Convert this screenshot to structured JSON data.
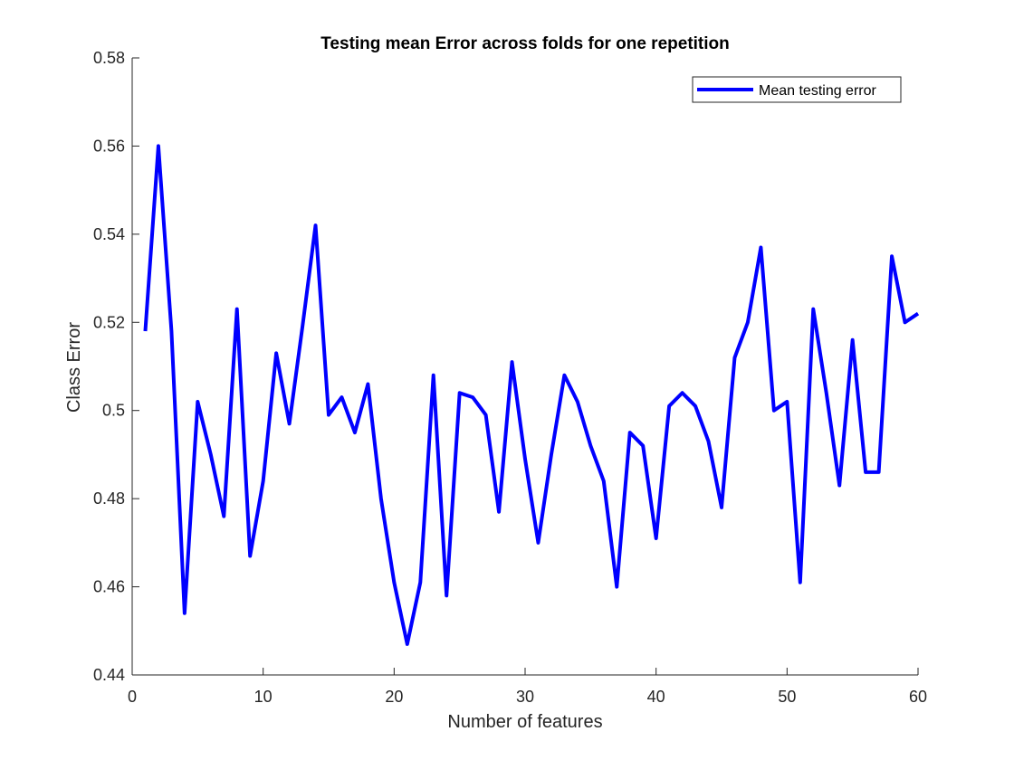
{
  "chart_data": {
    "type": "line",
    "title": "Testing mean Error across folds for one repetition",
    "xlabel": "Number of features",
    "ylabel": "Class Error",
    "xlim": [
      0,
      60
    ],
    "ylim": [
      0.44,
      0.58
    ],
    "xticks": [
      0,
      10,
      20,
      30,
      40,
      50,
      60
    ],
    "xtick_labels": [
      "0",
      "10",
      "20",
      "30",
      "40",
      "50",
      "60"
    ],
    "yticks": [
      0.44,
      0.46,
      0.48,
      0.5,
      0.52,
      0.54,
      0.56,
      0.58
    ],
    "ytick_labels": [
      "0.44",
      "0.46",
      "0.48",
      "0.5",
      "0.52",
      "0.54",
      "0.56",
      "0.58"
    ],
    "grid": false,
    "legend": {
      "position": "top-right",
      "entries": [
        "Mean testing error"
      ]
    },
    "series": [
      {
        "name": "Mean testing error",
        "color": "#0000ff",
        "x": [
          1,
          2,
          3,
          4,
          5,
          6,
          7,
          8,
          9,
          10,
          11,
          12,
          13,
          14,
          15,
          16,
          17,
          18,
          19,
          20,
          21,
          22,
          23,
          24,
          25,
          26,
          27,
          28,
          29,
          30,
          31,
          32,
          33,
          34,
          35,
          36,
          37,
          38,
          39,
          40,
          41,
          42,
          43,
          44,
          45,
          46,
          47,
          48,
          49,
          50,
          51,
          52,
          53,
          54,
          55,
          56,
          57,
          58,
          59,
          60
        ],
        "y": [
          0.518,
          0.56,
          0.518,
          0.454,
          0.502,
          0.49,
          0.476,
          0.523,
          0.467,
          0.484,
          0.513,
          0.497,
          0.519,
          0.542,
          0.499,
          0.503,
          0.495,
          0.506,
          0.48,
          0.461,
          0.447,
          0.461,
          0.508,
          0.458,
          0.504,
          0.503,
          0.499,
          0.477,
          0.511,
          0.489,
          0.47,
          0.49,
          0.508,
          0.502,
          0.492,
          0.484,
          0.46,
          0.495,
          0.492,
          0.471,
          0.501,
          0.504,
          0.501,
          0.493,
          0.478,
          0.512,
          0.52,
          0.537,
          0.5,
          0.502,
          0.461,
          0.523,
          0.504,
          0.483,
          0.516,
          0.486,
          0.486,
          0.535,
          0.52,
          0.522
        ]
      }
    ]
  }
}
